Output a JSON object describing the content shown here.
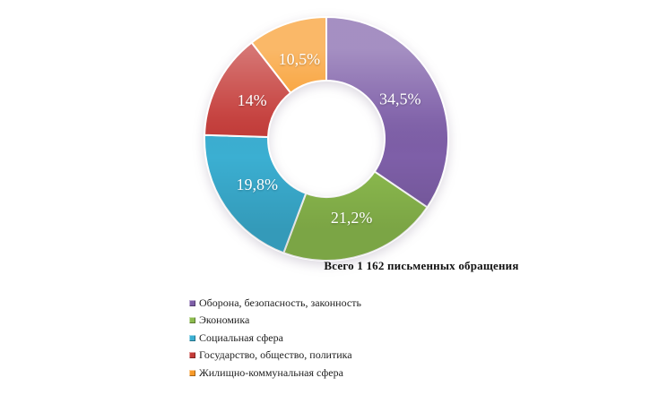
{
  "page": {
    "background": "#ffffff"
  },
  "chart_data": {
    "type": "pie",
    "subtype": "donut",
    "title": "Всего 1 162 письменных обращения",
    "total": 1162,
    "unit": "percent",
    "start_angle_deg": 0,
    "direction": "clockwise",
    "donut_hole_ratio": 0.478,
    "label_color": "#ffffff",
    "legend_position": "bottom-left",
    "series": [
      {
        "name": "Оборона, безопасность, законность",
        "value": 34.5,
        "label": "34,5%",
        "color": "#7E5FA8"
      },
      {
        "name": "Экономика",
        "value": 21.2,
        "label": "21,2%",
        "color": "#8CBB4E"
      },
      {
        "name": "Социальная сфера",
        "value": 19.8,
        "label": "19,8%",
        "color": "#3BAFD2"
      },
      {
        "name": "Государство, общество, политика",
        "value": 14,
        "label": "14%",
        "color": "#C43B38"
      },
      {
        "name": "Жилищно-коммунальная сфера",
        "value": 10.5,
        "label": "10,5%",
        "color": "#F89A28"
      }
    ]
  }
}
